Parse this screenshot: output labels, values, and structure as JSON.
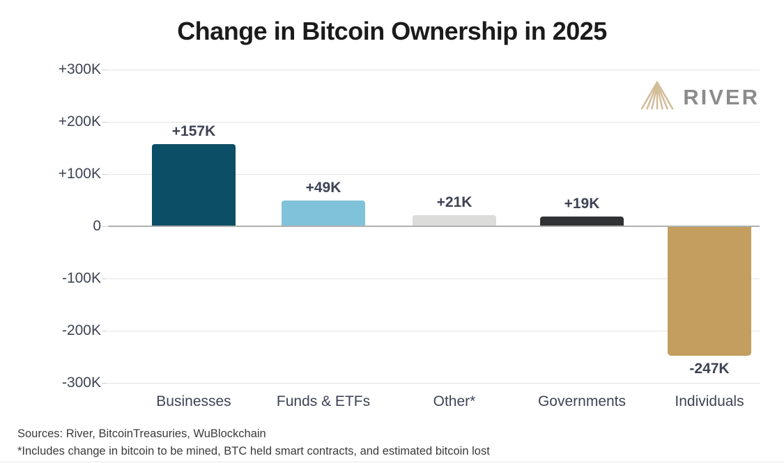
{
  "title": "Change in Bitcoin Ownership in 2025",
  "brand": {
    "name": "RIVER",
    "icon": "river-mountain-logo",
    "icon_color": "#d3bd9b",
    "text_color": "#8b8b8b"
  },
  "chart_data": {
    "type": "bar",
    "title": "Change in Bitcoin Ownership in 2025",
    "categories": [
      "Businesses",
      "Funds & ETFs",
      "Other*",
      "Governments",
      "Individuals"
    ],
    "values": [
      157,
      49,
      21,
      19,
      -247
    ],
    "value_labels": [
      "+157K",
      "+49K",
      "+21K",
      "+19K",
      "-247K"
    ],
    "bar_colors": [
      "#0b4e66",
      "#7fc2d9",
      "#dcdcda",
      "#313234",
      "#c39e5f"
    ],
    "xlabel": "",
    "ylabel": "",
    "ylim": [
      -300,
      300
    ],
    "y_ticks": [
      300,
      200,
      100,
      0,
      -100,
      -200,
      -300
    ],
    "y_tick_labels": [
      "+300K",
      "+200K",
      "+100K",
      "0",
      "-100K",
      "-200K",
      "-300K"
    ],
    "grid": true,
    "legend_position": "none"
  },
  "footer": {
    "sources": "Sources: River, BitcoinTreasuries, WuBlockchain",
    "note": "*Includes change in bitcoin to be mined, BTC held smart contracts, and estimated bitcoin lost"
  }
}
